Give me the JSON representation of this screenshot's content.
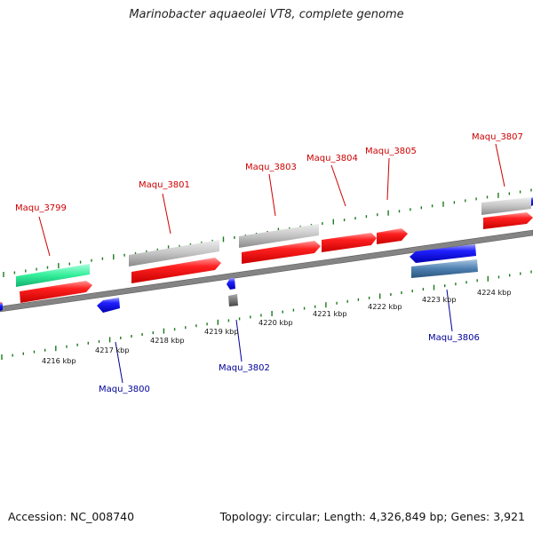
{
  "title": "Marinobacter aquaeolei VT8, complete genome",
  "footer": {
    "accession": "Accession: NC_008740",
    "summary": "Topology: circular; Length: 4,326,849 bp; Genes: 3,921"
  },
  "colors": {
    "forward_cds": "#ff1a1a",
    "reverse_cds": "#1a1aff",
    "forward_label": "#cc0000",
    "reverse_label": "#000099",
    "gray_feature": "#c8c8c8",
    "steel_feature": "#4a7fb0",
    "green_feature": "#33ee99",
    "dark_feature": "#666666",
    "backbone": "#808080",
    "tick": "#1a7a1a"
  },
  "kbp_scale": [
    "4216 kbp",
    "4217 kbp",
    "4218 kbp",
    "4219 kbp",
    "4220 kbp",
    "4221 kbp",
    "4222 kbp",
    "4223 kbp",
    "4224 kbp"
  ],
  "gene_labels": {
    "forward": [
      "Maqu_3799",
      "Maqu_3801",
      "Maqu_3803",
      "Maqu_3804",
      "Maqu_3805",
      "Maqu_3807"
    ],
    "reverse": [
      "Maqu_3800",
      "Maqu_3802",
      "Maqu_3806"
    ]
  }
}
